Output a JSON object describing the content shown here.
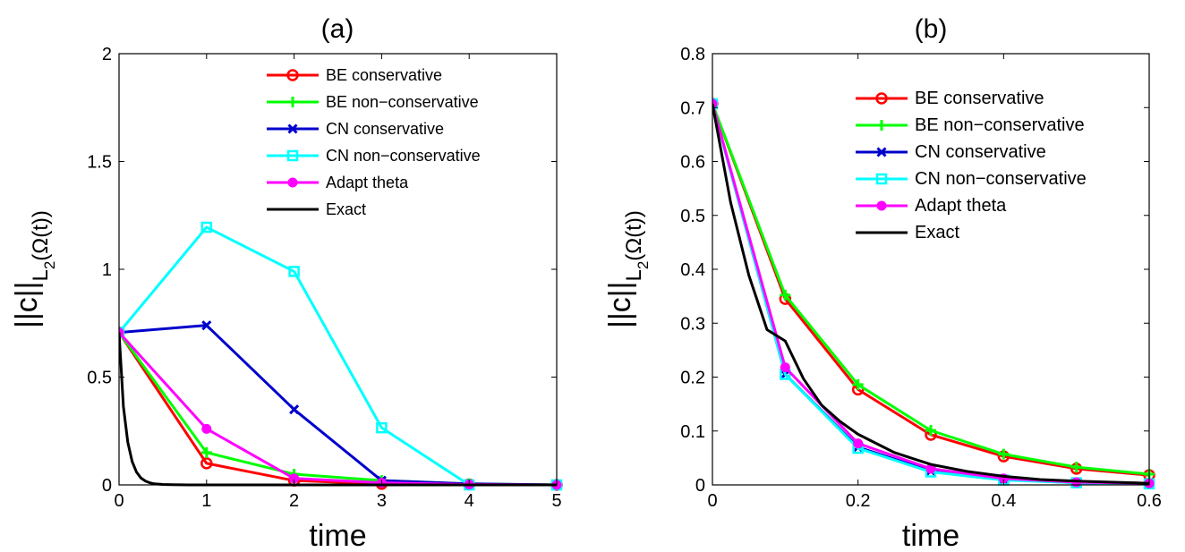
{
  "chart_data": [
    {
      "type": "line",
      "title": "(a)",
      "xlabel": "time",
      "ylabel_main": "||c||",
      "ylabel_sub": "L",
      "ylabel_subsub": "2",
      "ylabel_rest": "(Ω(t))",
      "xlim": [
        0,
        5
      ],
      "ylim": [
        0,
        2
      ],
      "xticks": [
        0,
        1,
        2,
        3,
        4,
        5
      ],
      "xtick_labels": [
        "0",
        "1",
        "2",
        "3",
        "4",
        "5"
      ],
      "yticks": [
        0,
        0.5,
        1,
        1.5,
        2
      ],
      "ytick_labels": [
        "0",
        "0.5",
        "1",
        "1.5",
        "2"
      ],
      "legend_position": "top-right",
      "grid": false,
      "series": [
        {
          "name": "BE conservative",
          "color": "#ff0000",
          "marker": "circle",
          "x": [
            0,
            1,
            2,
            3,
            4,
            5
          ],
          "y": [
            0.707,
            0.1,
            0.02,
            0.005,
            0.002,
            0.0
          ]
        },
        {
          "name": "BE non−conservative",
          "color": "#00ff00",
          "marker": "plus",
          "x": [
            0,
            1,
            2,
            3,
            4,
            5
          ],
          "y": [
            0.707,
            0.15,
            0.05,
            0.02,
            0.005,
            0.0
          ]
        },
        {
          "name": "CN conservative",
          "color": "#0000cc",
          "marker": "x",
          "x": [
            0,
            1,
            2,
            3,
            4,
            5
          ],
          "y": [
            0.707,
            0.74,
            0.35,
            0.02,
            0.005,
            0.0
          ]
        },
        {
          "name": "CN non−conservative",
          "color": "#00ffff",
          "marker": "square",
          "x": [
            0,
            1,
            2,
            3,
            4,
            5
          ],
          "y": [
            0.707,
            1.195,
            0.99,
            0.265,
            0.0,
            0.0
          ]
        },
        {
          "name": "Adapt theta",
          "color": "#ff00ff",
          "marker": "dot",
          "x": [
            0,
            1,
            2,
            3,
            4,
            5
          ],
          "y": [
            0.707,
            0.26,
            0.03,
            0.01,
            0.002,
            0.0
          ]
        },
        {
          "name": "Exact",
          "color": "#000000",
          "marker": "none",
          "x": [
            0,
            0.05,
            0.1,
            0.15,
            0.2,
            0.25,
            0.3,
            0.35,
            0.4,
            0.5,
            0.6,
            0.8,
            1.0,
            5.0
          ],
          "y": [
            0.707,
            0.363,
            0.198,
            0.108,
            0.059,
            0.032,
            0.018,
            0.01,
            0.005,
            0.002,
            0.001,
            0.0,
            0.0,
            0.0
          ]
        }
      ]
    },
    {
      "type": "line",
      "title": "(b)",
      "xlabel": "time",
      "ylabel_main": "||c||",
      "ylabel_sub": "L",
      "ylabel_subsub": "2",
      "ylabel_rest": "(Ω(t))",
      "xlim": [
        0,
        0.6
      ],
      "ylim": [
        0,
        0.8
      ],
      "xticks": [
        0,
        0.2,
        0.4,
        0.6
      ],
      "xtick_labels": [
        "0",
        "0.2",
        "0.4",
        "0.6"
      ],
      "yticks": [
        0,
        0.1,
        0.2,
        0.3,
        0.4,
        0.5,
        0.6,
        0.7,
        0.8
      ],
      "ytick_labels": [
        "0",
        "0.1",
        "0.2",
        "0.3",
        "0.4",
        "0.5",
        "0.6",
        "0.7",
        "0.8"
      ],
      "legend_position": "top-right",
      "grid": false,
      "series": [
        {
          "name": "BE conservative",
          "color": "#ff0000",
          "marker": "circle",
          "x": [
            0,
            0.1,
            0.2,
            0.3,
            0.4,
            0.5,
            0.6
          ],
          "y": [
            0.707,
            0.345,
            0.177,
            0.093,
            0.053,
            0.03,
            0.018
          ]
        },
        {
          "name": "BE non−conservative",
          "color": "#00ff00",
          "marker": "plus",
          "x": [
            0,
            0.1,
            0.2,
            0.3,
            0.4,
            0.5,
            0.6
          ],
          "y": [
            0.707,
            0.352,
            0.186,
            0.101,
            0.057,
            0.033,
            0.02
          ]
        },
        {
          "name": "CN conservative",
          "color": "#0000cc",
          "marker": "x",
          "x": [
            0,
            0.1,
            0.2,
            0.3,
            0.4,
            0.5,
            0.6
          ],
          "y": [
            0.707,
            0.205,
            0.07,
            0.026,
            0.01,
            0.004,
            0.002
          ]
        },
        {
          "name": "CN non−conservative",
          "color": "#00ffff",
          "marker": "square",
          "x": [
            0,
            0.1,
            0.2,
            0.3,
            0.4,
            0.5,
            0.6
          ],
          "y": [
            0.707,
            0.205,
            0.068,
            0.024,
            0.009,
            0.004,
            0.002
          ]
        },
        {
          "name": "Adapt theta",
          "color": "#ff00ff",
          "marker": "dot",
          "x": [
            0,
            0.1,
            0.2,
            0.3,
            0.4,
            0.5,
            0.6
          ],
          "y": [
            0.707,
            0.218,
            0.077,
            0.03,
            0.012,
            0.005,
            0.003
          ]
        },
        {
          "name": "Exact",
          "color": "#000000",
          "marker": "none",
          "x": [
            0,
            0.025,
            0.05,
            0.075,
            0.1,
            0.125,
            0.15,
            0.175,
            0.2,
            0.25,
            0.3,
            0.35,
            0.4,
            0.45,
            0.5,
            0.55,
            0.6
          ],
          "y": [
            0.707,
            0.524,
            0.389,
            0.288,
            0.267,
            0.197,
            0.148,
            0.118,
            0.094,
            0.06,
            0.038,
            0.025,
            0.016,
            0.01,
            0.007,
            0.005,
            0.003
          ]
        }
      ]
    }
  ]
}
